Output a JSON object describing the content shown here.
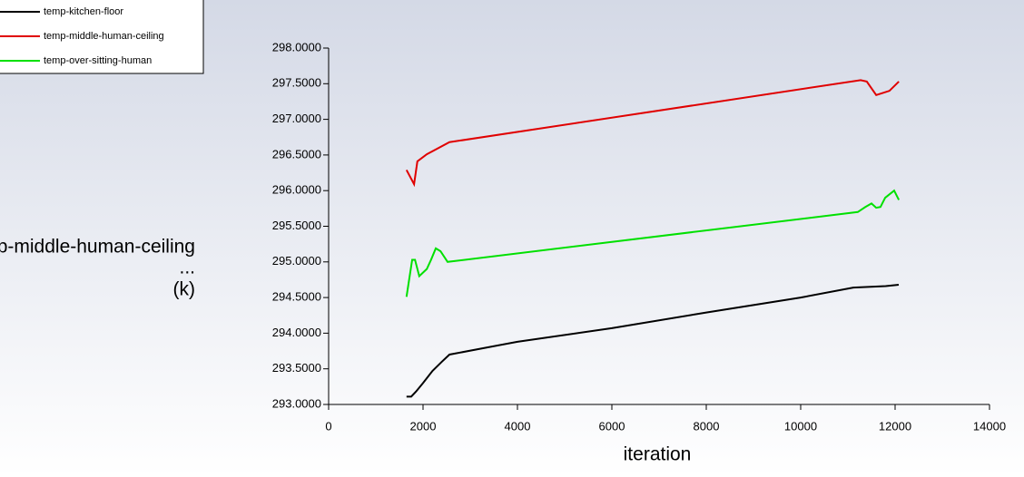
{
  "chart_data": {
    "type": "line",
    "x_label": "iteration",
    "y_label": [
      "temp-middle-human-ceiling",
      "...",
      "(k)"
    ],
    "xlim": [
      0,
      14000
    ],
    "xticks": [
      0,
      2000,
      4000,
      6000,
      8000,
      10000,
      12000,
      14000
    ],
    "ylim": [
      293,
      298
    ],
    "yticks": [
      {
        "value": 293,
        "label": "293.0000"
      },
      {
        "value": 293.5,
        "label": "293.5000"
      },
      {
        "value": 294,
        "label": "294.0000"
      },
      {
        "value": 294.5,
        "label": "294.5000"
      },
      {
        "value": 295,
        "label": "295.0000"
      },
      {
        "value": 295.5,
        "label": "295.5000"
      },
      {
        "value": 296,
        "label": "296.0000"
      },
      {
        "value": 296.5,
        "label": "296.5000"
      },
      {
        "value": 297,
        "label": "297.0000"
      },
      {
        "value": 297.5,
        "label": "297.5000"
      },
      {
        "value": 298,
        "label": "298.0000"
      }
    ],
    "legend": "top-left",
    "series": [
      {
        "name": "temp-kitchen-floor",
        "color": "#000000",
        "x": [
          1650,
          1750,
          1850,
          2000,
          2200,
          2400,
          2560,
          4000,
          6000,
          8000,
          10000,
          11115,
          11800,
          12077
        ],
        "values": [
          293.11,
          293.11,
          293.18,
          293.3,
          293.47,
          293.6,
          293.7,
          293.88,
          294.07,
          294.29,
          294.5,
          294.64,
          294.66,
          294.68
        ]
      },
      {
        "name": "temp-middle-human-ceiling",
        "color": "#e00000",
        "x": [
          1650,
          1810,
          1880,
          2080,
          2560,
          11270,
          11400,
          11600,
          11880,
          12080
        ],
        "values": [
          296.29,
          296.09,
          296.41,
          296.51,
          296.68,
          297.55,
          297.53,
          297.34,
          297.4,
          297.53
        ]
      },
      {
        "name": "temp-over-sitting-human",
        "color": "#00e000",
        "x": [
          1650,
          1770,
          1830,
          1920,
          2080,
          2170,
          2270,
          2370,
          2520,
          11210,
          11370,
          11500,
          11600,
          11690,
          11790,
          11980,
          12080
        ],
        "values": [
          294.51,
          295.03,
          295.03,
          294.8,
          294.9,
          295.03,
          295.19,
          295.15,
          295.0,
          295.7,
          295.77,
          295.82,
          295.76,
          295.77,
          295.9,
          296.0,
          295.87
        ]
      }
    ]
  }
}
